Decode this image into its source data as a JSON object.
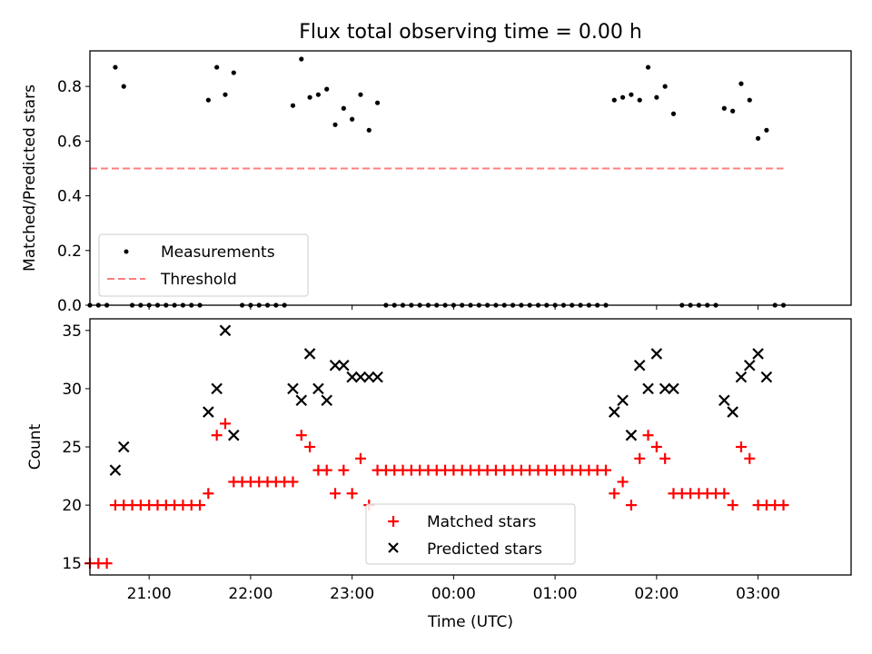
{
  "chart_data": [
    {
      "type": "scatter",
      "title": "Flux total observing time = 0.00 h",
      "xlabel": "",
      "ylabel": "Matched/Predicted stars",
      "xlim": [
        "20:25",
        "03:55"
      ],
      "ylim": [
        0,
        0.93
      ],
      "yticks": [
        0.0,
        0.2,
        0.4,
        0.6,
        0.8
      ],
      "ytick_labels": [
        "0.0",
        "0.2",
        "0.4",
        "0.6",
        "0.8"
      ],
      "legend_location": "lower-left",
      "series": [
        {
          "name": "Measurements",
          "marker": "dot",
          "color": "#000000",
          "points": [
            [
              "20:25",
              0
            ],
            [
              "20:30",
              0
            ],
            [
              "20:35",
              0
            ],
            [
              "20:40",
              0.87
            ],
            [
              "20:45",
              0.8
            ],
            [
              "20:50",
              0
            ],
            [
              "20:55",
              0
            ],
            [
              "21:00",
              0
            ],
            [
              "21:05",
              0
            ],
            [
              "21:10",
              0
            ],
            [
              "21:15",
              0
            ],
            [
              "21:20",
              0
            ],
            [
              "21:25",
              0
            ],
            [
              "21:30",
              0
            ],
            [
              "21:35",
              0.75
            ],
            [
              "21:40",
              0.87
            ],
            [
              "21:45",
              0.77
            ],
            [
              "21:50",
              0.85
            ],
            [
              "21:55",
              0
            ],
            [
              "22:00",
              0
            ],
            [
              "22:05",
              0
            ],
            [
              "22:10",
              0
            ],
            [
              "22:15",
              0
            ],
            [
              "22:20",
              0
            ],
            [
              "22:25",
              0.73
            ],
            [
              "22:30",
              0.9
            ],
            [
              "22:35",
              0.76
            ],
            [
              "22:40",
              0.77
            ],
            [
              "22:45",
              0.79
            ],
            [
              "22:50",
              0.66
            ],
            [
              "22:55",
              0.72
            ],
            [
              "23:00",
              0.68
            ],
            [
              "23:05",
              0.77
            ],
            [
              "23:10",
              0.64
            ],
            [
              "23:15",
              0.74
            ],
            [
              "23:20",
              0
            ],
            [
              "23:25",
              0
            ],
            [
              "23:30",
              0
            ],
            [
              "23:35",
              0
            ],
            [
              "23:40",
              0
            ],
            [
              "23:45",
              0
            ],
            [
              "23:50",
              0
            ],
            [
              "23:55",
              0
            ],
            [
              "00:00",
              0
            ],
            [
              "00:05",
              0
            ],
            [
              "00:10",
              0
            ],
            [
              "00:15",
              0
            ],
            [
              "00:20",
              0
            ],
            [
              "00:25",
              0
            ],
            [
              "00:30",
              0
            ],
            [
              "00:35",
              0
            ],
            [
              "00:40",
              0
            ],
            [
              "00:45",
              0
            ],
            [
              "00:50",
              0
            ],
            [
              "00:55",
              0
            ],
            [
              "01:00",
              0
            ],
            [
              "01:05",
              0
            ],
            [
              "01:10",
              0
            ],
            [
              "01:15",
              0
            ],
            [
              "01:20",
              0
            ],
            [
              "01:25",
              0
            ],
            [
              "01:30",
              0
            ],
            [
              "01:35",
              0.75
            ],
            [
              "01:40",
              0.76
            ],
            [
              "01:45",
              0.77
            ],
            [
              "01:50",
              0.75
            ],
            [
              "01:55",
              0.87
            ],
            [
              "02:00",
              0.76
            ],
            [
              "02:05",
              0.8
            ],
            [
              "02:10",
              0.7
            ],
            [
              "02:15",
              0
            ],
            [
              "02:20",
              0
            ],
            [
              "02:25",
              0
            ],
            [
              "02:30",
              0
            ],
            [
              "02:35",
              0
            ],
            [
              "02:40",
              0.72
            ],
            [
              "02:45",
              0.71
            ],
            [
              "02:50",
              0.81
            ],
            [
              "02:55",
              0.75
            ],
            [
              "03:00",
              0.61
            ],
            [
              "03:05",
              0.64
            ],
            [
              "03:10",
              0
            ],
            [
              "03:15",
              0
            ]
          ]
        },
        {
          "name": "Threshold",
          "marker": "dashed-line",
          "color": "#ff7f7f",
          "points": [
            [
              "20:25",
              0.5
            ],
            [
              "03:15",
              0.5
            ]
          ]
        }
      ]
    },
    {
      "type": "scatter",
      "title": "",
      "xlabel": "Time (UTC)",
      "ylabel": "Count",
      "xlim": [
        "20:25",
        "03:55"
      ],
      "ylim": [
        14,
        36
      ],
      "yticks": [
        15,
        20,
        25,
        30,
        35
      ],
      "ytick_labels": [
        "15",
        "20",
        "25",
        "30",
        "35"
      ],
      "xticks": [
        "21:00",
        "22:00",
        "23:00",
        "00:00",
        "01:00",
        "02:00",
        "03:00"
      ],
      "legend_location": "lower-center",
      "series": [
        {
          "name": "Matched stars",
          "marker": "plus",
          "color": "#ff0000",
          "points": [
            [
              "20:25",
              15
            ],
            [
              "20:30",
              15
            ],
            [
              "20:35",
              15
            ],
            [
              "20:40",
              20
            ],
            [
              "20:45",
              20
            ],
            [
              "20:50",
              20
            ],
            [
              "20:55",
              20
            ],
            [
              "21:00",
              20
            ],
            [
              "21:05",
              20
            ],
            [
              "21:10",
              20
            ],
            [
              "21:15",
              20
            ],
            [
              "21:20",
              20
            ],
            [
              "21:25",
              20
            ],
            [
              "21:30",
              20
            ],
            [
              "21:35",
              21
            ],
            [
              "21:40",
              26
            ],
            [
              "21:45",
              27
            ],
            [
              "21:50",
              22
            ],
            [
              "21:55",
              22
            ],
            [
              "22:00",
              22
            ],
            [
              "22:05",
              22
            ],
            [
              "22:10",
              22
            ],
            [
              "22:15",
              22
            ],
            [
              "22:20",
              22
            ],
            [
              "22:25",
              22
            ],
            [
              "22:30",
              26
            ],
            [
              "22:35",
              25
            ],
            [
              "22:40",
              23
            ],
            [
              "22:45",
              23
            ],
            [
              "22:50",
              21
            ],
            [
              "22:55",
              23
            ],
            [
              "23:00",
              21
            ],
            [
              "23:05",
              24
            ],
            [
              "23:10",
              20
            ],
            [
              "23:15",
              23
            ],
            [
              "23:20",
              23
            ],
            [
              "23:25",
              23
            ],
            [
              "23:30",
              23
            ],
            [
              "23:35",
              23
            ],
            [
              "23:40",
              23
            ],
            [
              "23:45",
              23
            ],
            [
              "23:50",
              23
            ],
            [
              "23:55",
              23
            ],
            [
              "00:00",
              23
            ],
            [
              "00:05",
              23
            ],
            [
              "00:10",
              23
            ],
            [
              "00:15",
              23
            ],
            [
              "00:20",
              23
            ],
            [
              "00:25",
              23
            ],
            [
              "00:30",
              23
            ],
            [
              "00:35",
              23
            ],
            [
              "00:40",
              23
            ],
            [
              "00:45",
              23
            ],
            [
              "00:50",
              23
            ],
            [
              "00:55",
              23
            ],
            [
              "01:00",
              23
            ],
            [
              "01:05",
              23
            ],
            [
              "01:10",
              23
            ],
            [
              "01:15",
              23
            ],
            [
              "01:20",
              23
            ],
            [
              "01:25",
              23
            ],
            [
              "01:30",
              23
            ],
            [
              "01:35",
              21
            ],
            [
              "01:40",
              22
            ],
            [
              "01:45",
              20
            ],
            [
              "01:50",
              24
            ],
            [
              "01:55",
              26
            ],
            [
              "02:00",
              25
            ],
            [
              "02:05",
              24
            ],
            [
              "02:10",
              21
            ],
            [
              "02:15",
              21
            ],
            [
              "02:20",
              21
            ],
            [
              "02:25",
              21
            ],
            [
              "02:30",
              21
            ],
            [
              "02:35",
              21
            ],
            [
              "02:40",
              21
            ],
            [
              "02:45",
              20
            ],
            [
              "02:50",
              25
            ],
            [
              "02:55",
              24
            ],
            [
              "03:00",
              20
            ],
            [
              "03:05",
              20
            ],
            [
              "03:10",
              20
            ],
            [
              "03:15",
              20
            ]
          ]
        },
        {
          "name": "Predicted stars",
          "marker": "x",
          "color": "#000000",
          "points": [
            [
              "20:40",
              23
            ],
            [
              "20:45",
              25
            ],
            [
              "21:35",
              28
            ],
            [
              "21:40",
              30
            ],
            [
              "21:45",
              35
            ],
            [
              "21:50",
              26
            ],
            [
              "22:25",
              30
            ],
            [
              "22:30",
              29
            ],
            [
              "22:35",
              33
            ],
            [
              "22:40",
              30
            ],
            [
              "22:45",
              29
            ],
            [
              "22:50",
              32
            ],
            [
              "22:55",
              32
            ],
            [
              "23:00",
              31
            ],
            [
              "23:05",
              31
            ],
            [
              "23:10",
              31
            ],
            [
              "23:15",
              31
            ],
            [
              "01:35",
              28
            ],
            [
              "01:40",
              29
            ],
            [
              "01:45",
              26
            ],
            [
              "01:50",
              32
            ],
            [
              "01:55",
              30
            ],
            [
              "02:00",
              33
            ],
            [
              "02:05",
              30
            ],
            [
              "02:10",
              30
            ],
            [
              "02:40",
              29
            ],
            [
              "02:45",
              28
            ],
            [
              "02:50",
              31
            ],
            [
              "02:55",
              32
            ],
            [
              "03:00",
              33
            ],
            [
              "03:05",
              31
            ]
          ]
        }
      ]
    }
  ]
}
